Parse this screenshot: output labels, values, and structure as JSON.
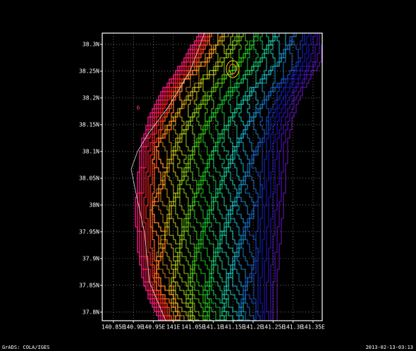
{
  "chart_data": {
    "type": "contour",
    "xlim": [
      140.822,
      141.373
    ],
    "ylim": [
      37.784,
      38.321
    ],
    "xticks": [
      {
        "value": 140.85,
        "label": "140.85E"
      },
      {
        "value": 140.9,
        "label": "140.9E"
      },
      {
        "value": 140.95,
        "label": "140.95E"
      },
      {
        "value": 141,
        "label": "141E"
      },
      {
        "value": 141.05,
        "label": "141.05E"
      },
      {
        "value": 141.1,
        "label": "141.1E"
      },
      {
        "value": 141.15,
        "label": "141.15E"
      },
      {
        "value": 141.2,
        "label": "141.2E"
      },
      {
        "value": 141.25,
        "label": "141.25E"
      },
      {
        "value": 141.3,
        "label": "141.3E"
      },
      {
        "value": 141.35,
        "label": "141.35E"
      }
    ],
    "yticks": [
      {
        "value": 37.8,
        "label": "37.8N"
      },
      {
        "value": 37.85,
        "label": "37.85N"
      },
      {
        "value": 37.9,
        "label": "37.9N"
      },
      {
        "value": 37.95,
        "label": "37.95N"
      },
      {
        "value": 38,
        "label": "38N"
      },
      {
        "value": 38.05,
        "label": "38.05N"
      },
      {
        "value": 38.1,
        "label": "38.1N"
      },
      {
        "value": 38.15,
        "label": "38.15N"
      },
      {
        "value": 38.2,
        "label": "38.2N"
      },
      {
        "value": 38.25,
        "label": "38.25N"
      },
      {
        "value": 38.3,
        "label": "38.3N"
      }
    ],
    "grid": true,
    "annotations": [
      "6",
      "1"
    ],
    "footer_left": "GrADS: COLA/IGES",
    "footer_right": "2013-02-13-03:13"
  }
}
